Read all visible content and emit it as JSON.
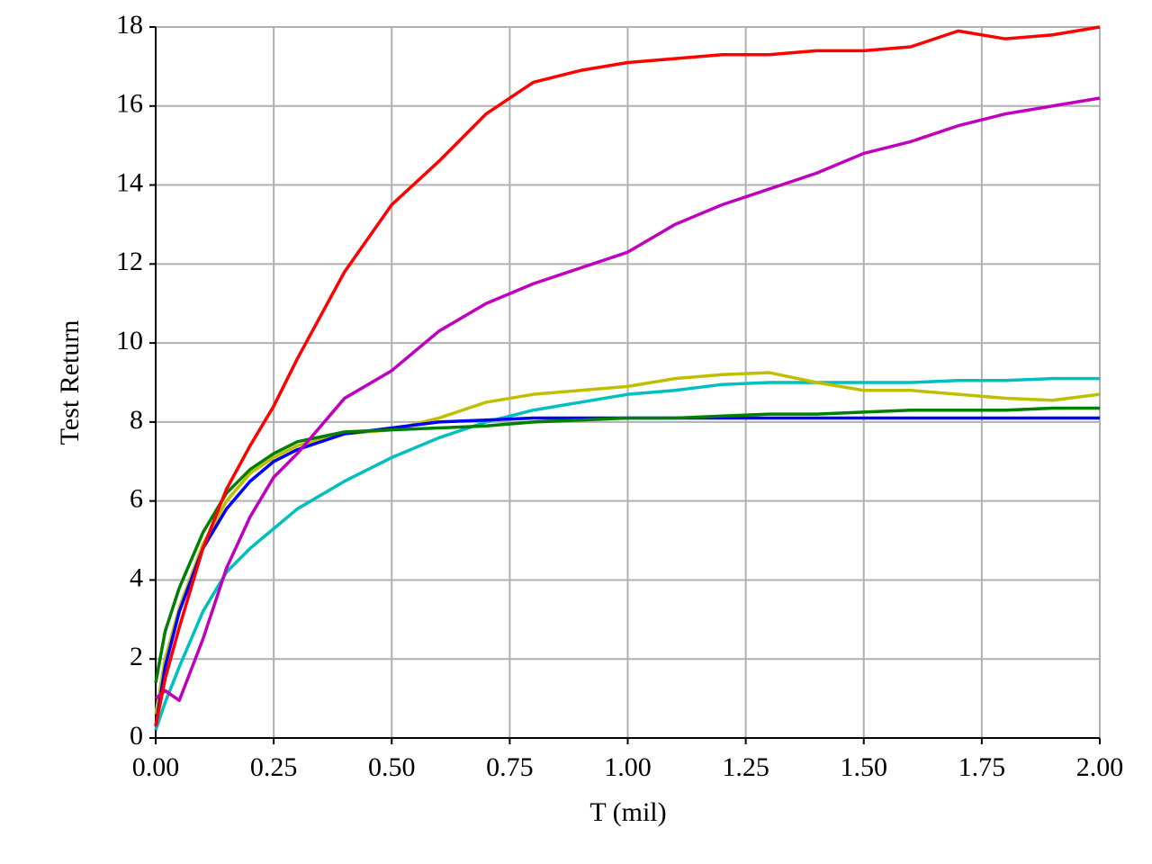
{
  "chart_data": {
    "type": "line",
    "xlabel": "T (mil)",
    "ylabel": "Test Return",
    "x": [
      0,
      0.02,
      0.05,
      0.1,
      0.15,
      0.2,
      0.25,
      0.3,
      0.4,
      0.5,
      0.6,
      0.7,
      0.8,
      0.9,
      1.0,
      1.1,
      1.2,
      1.3,
      1.4,
      1.5,
      1.6,
      1.7,
      1.8,
      1.9,
      2.0
    ],
    "series": [
      {
        "color": "#00bfbf",
        "values": [
          0.2,
          0.9,
          1.8,
          3.2,
          4.2,
          4.8,
          5.3,
          5.8,
          6.5,
          7.1,
          7.6,
          8.0,
          8.3,
          8.5,
          8.7,
          8.8,
          8.95,
          9.0,
          9.0,
          9.0,
          9.0,
          9.05,
          9.05,
          9.1,
          9.1
        ]
      },
      {
        "color": "#bfbf00",
        "values": [
          0.6,
          2.0,
          3.3,
          4.9,
          6.0,
          6.7,
          7.1,
          7.4,
          7.7,
          7.8,
          8.1,
          8.5,
          8.7,
          8.8,
          8.9,
          9.1,
          9.2,
          9.25,
          9.0,
          8.8,
          8.8,
          8.7,
          8.6,
          8.55,
          8.7
        ]
      },
      {
        "color": "#0000ff",
        "values": [
          0.3,
          1.8,
          3.2,
          4.8,
          5.8,
          6.5,
          7.0,
          7.3,
          7.7,
          7.85,
          8.0,
          8.05,
          8.1,
          8.1,
          8.1,
          8.1,
          8.1,
          8.1,
          8.1,
          8.1,
          8.1,
          8.1,
          8.1,
          8.1,
          8.1
        ]
      },
      {
        "color": "#008000",
        "values": [
          1.4,
          2.7,
          3.8,
          5.2,
          6.2,
          6.8,
          7.2,
          7.5,
          7.75,
          7.8,
          7.85,
          7.9,
          8.0,
          8.05,
          8.1,
          8.1,
          8.15,
          8.2,
          8.2,
          8.25,
          8.3,
          8.3,
          8.3,
          8.35,
          8.35
        ]
      },
      {
        "color": "#bf00bf",
        "values": [
          1.0,
          1.2,
          0.95,
          2.5,
          4.3,
          5.6,
          6.6,
          7.2,
          8.6,
          9.3,
          10.3,
          11.0,
          11.5,
          11.9,
          12.3,
          13.0,
          13.5,
          13.9,
          14.3,
          14.8,
          15.1,
          15.5,
          15.8,
          16.0,
          16.2
        ]
      },
      {
        "color": "#ff0000",
        "values": [
          0.3,
          1.5,
          2.8,
          4.8,
          6.3,
          7.4,
          8.4,
          9.6,
          11.8,
          13.5,
          14.6,
          15.8,
          16.6,
          16.9,
          17.1,
          17.2,
          17.3,
          17.3,
          17.4,
          17.4,
          17.5,
          17.9,
          17.7,
          17.8,
          18.0
        ]
      }
    ],
    "xlim": [
      0,
      2
    ],
    "xticks": [
      {
        "value": 0,
        "label": "0.00"
      },
      {
        "value": 0.25,
        "label": "0.25"
      },
      {
        "value": 0.5,
        "label": "0.50"
      },
      {
        "value": 0.75,
        "label": "0.75"
      },
      {
        "value": 1,
        "label": "1.00"
      },
      {
        "value": 1.25,
        "label": "1.25"
      },
      {
        "value": 1.5,
        "label": "1.50"
      },
      {
        "value": 1.75,
        "label": "1.75"
      },
      {
        "value": 2,
        "label": "2.00"
      }
    ],
    "ylim": [
      0,
      18
    ],
    "yticks": [
      0,
      2,
      4,
      6,
      8,
      10,
      12,
      14,
      16,
      18
    ],
    "grid": true
  }
}
